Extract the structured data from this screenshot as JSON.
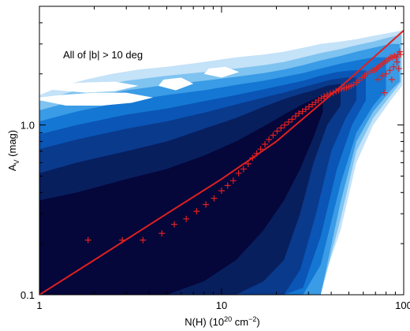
{
  "chart_data": {
    "type": "scatter",
    "title": "",
    "annotation": "All of |b| > 10 deg",
    "xlabel": {
      "base": "N(H) (10",
      "sup": "20",
      "mid": " cm",
      "sup2": "−2",
      "end": ")"
    },
    "ylabel": {
      "base": "A",
      "sub": "V",
      "end": " (mag)"
    },
    "x_scale": "log",
    "y_scale": "log",
    "xlim": [
      1,
      100
    ],
    "ylim": [
      0.1,
      5
    ],
    "x_ticks": [
      {
        "value": 1,
        "label": "1"
      },
      {
        "value": 10,
        "label": "10"
      },
      {
        "value": 100,
        "label": "100"
      }
    ],
    "y_ticks": [
      {
        "value": 0.1,
        "label": "0.1"
      },
      {
        "value": 1.0,
        "label": "1.0"
      }
    ],
    "density_levels": [
      "#05063a",
      "#081f5e",
      "#0a3a8c",
      "#0a55b5",
      "#1477d4",
      "#3a9be6",
      "#7fc3f0",
      "#c4e2f8"
    ],
    "density_bands": [
      {
        "x": [
          1,
          1.6,
          3,
          5,
          8,
          12,
          17,
          22,
          27,
          32,
          36
        ],
        "top": [
          0.36,
          0.4,
          0.48,
          0.55,
          0.66,
          0.8,
          0.98,
          1.15,
          1.3,
          1.42,
          1.5
        ],
        "bottom": [
          0.1,
          0.1,
          0.1,
          0.1,
          0.12,
          0.16,
          0.24,
          0.36,
          0.55,
          0.85,
          1.2
        ]
      },
      {
        "x": [
          1,
          1.6,
          3,
          5,
          8,
          12,
          17,
          22,
          27,
          32,
          38,
          45
        ],
        "top": [
          0.52,
          0.6,
          0.7,
          0.8,
          0.95,
          1.1,
          1.28,
          1.42,
          1.52,
          1.6,
          1.7,
          1.75
        ],
        "bottom": [
          0.1,
          0.1,
          0.1,
          0.1,
          0.1,
          0.1,
          0.12,
          0.16,
          0.3,
          0.6,
          1.0,
          1.3
        ]
      },
      {
        "x": [
          1,
          1.6,
          3,
          5,
          8,
          12,
          17,
          22,
          27,
          33,
          40,
          48,
          55
        ],
        "top": [
          0.72,
          0.82,
          0.95,
          1.05,
          1.18,
          1.32,
          1.45,
          1.55,
          1.65,
          1.75,
          1.85,
          1.9,
          1.9
        ],
        "bottom": [
          0.1,
          0.1,
          0.1,
          0.1,
          0.1,
          0.1,
          0.1,
          0.1,
          0.14,
          0.3,
          0.7,
          1.1,
          1.4
        ]
      },
      {
        "x": [
          1,
          1.6,
          3,
          5,
          8,
          12,
          17,
          22,
          28,
          35,
          43,
          52,
          62
        ],
        "top": [
          0.88,
          1.0,
          1.15,
          1.25,
          1.38,
          1.5,
          1.62,
          1.72,
          1.82,
          1.95,
          2.05,
          2.1,
          2.1
        ],
        "bottom": [
          0.1,
          0.1,
          0.1,
          0.1,
          0.1,
          0.1,
          0.1,
          0.1,
          0.11,
          0.22,
          0.55,
          1.0,
          1.4
        ]
      },
      {
        "x": [
          1,
          1.6,
          3,
          5,
          8,
          12,
          17,
          22,
          28,
          35,
          45,
          55,
          68,
          80
        ],
        "top": [
          1.05,
          1.2,
          1.38,
          1.5,
          1.6,
          1.72,
          1.82,
          1.92,
          2.02,
          2.15,
          2.3,
          2.4,
          2.5,
          2.5
        ],
        "bottom": [
          0.1,
          0.1,
          0.1,
          0.1,
          0.1,
          0.1,
          0.1,
          0.1,
          0.1,
          0.15,
          0.45,
          0.9,
          1.3,
          1.6
        ]
      },
      {
        "x": [
          1,
          1.6,
          3,
          5,
          8,
          12,
          17,
          22,
          28,
          35,
          45,
          55,
          68,
          85,
          95
        ],
        "top": [
          1.22,
          1.4,
          1.6,
          1.72,
          1.82,
          1.92,
          2.02,
          2.12,
          2.25,
          2.4,
          2.55,
          2.7,
          2.85,
          3.0,
          3.0
        ],
        "bottom": [
          0.1,
          0.1,
          0.1,
          0.1,
          0.1,
          0.1,
          0.1,
          0.1,
          0.1,
          0.1,
          0.35,
          0.8,
          1.2,
          1.6,
          1.8
        ]
      },
      {
        "x": [
          1,
          1.6,
          3,
          5,
          8,
          12,
          17,
          22,
          28,
          35,
          45,
          55,
          68,
          85,
          97
        ],
        "top": [
          1.38,
          1.6,
          1.82,
          1.95,
          2.05,
          2.15,
          2.25,
          2.35,
          2.5,
          2.65,
          2.8,
          2.95,
          3.1,
          3.3,
          3.4
        ],
        "bottom": [
          0.1,
          0.1,
          0.1,
          0.1,
          0.1,
          0.1,
          0.1,
          0.1,
          0.1,
          0.1,
          0.28,
          0.7,
          1.1,
          1.5,
          1.8
        ]
      },
      {
        "x": [
          1,
          1.3,
          1.8,
          2.5,
          3.5,
          5,
          8,
          12,
          17,
          22,
          28,
          35,
          45,
          55,
          68,
          85,
          98
        ],
        "top": [
          1.5,
          1.68,
          1.85,
          2.0,
          2.12,
          2.2,
          2.35,
          2.5,
          2.6,
          2.7,
          2.85,
          3.0,
          3.1,
          3.2,
          3.35,
          3.5,
          3.6
        ],
        "bottom": [
          0.1,
          0.1,
          0.1,
          0.1,
          0.1,
          0.1,
          0.1,
          0.1,
          0.1,
          0.1,
          0.1,
          0.11,
          0.24,
          0.6,
          1.0,
          1.4,
          1.7
        ]
      }
    ],
    "white_patches": [
      {
        "x": [
          1.0,
          1.4,
          2.2,
          3.2,
          4.2,
          3.0,
          2.0,
          1.3,
          1.0
        ],
        "y": [
          1.4,
          1.3,
          1.3,
          1.35,
          1.45,
          1.55,
          1.55,
          1.5,
          1.45
        ]
      },
      {
        "x": [
          1.1,
          1.8,
          2.6,
          3.5,
          2.6,
          1.8,
          1.1
        ],
        "y": [
          1.62,
          1.55,
          1.58,
          1.7,
          1.8,
          1.78,
          1.72
        ]
      },
      {
        "x": [
          4.5,
          5.6,
          7.0,
          6.0,
          4.8
        ],
        "y": [
          1.7,
          1.6,
          1.75,
          1.9,
          1.85
        ]
      },
      {
        "x": [
          8.0,
          10.0,
          12.5,
          10.5,
          8.5
        ],
        "y": [
          2.0,
          1.9,
          2.05,
          2.2,
          2.15
        ]
      }
    ],
    "series": [
      {
        "style": "plus-markers",
        "color": "#e02020",
        "x": [
          1.85,
          2.85,
          3.7,
          4.7,
          5.5,
          6.4,
          7.3,
          8.2,
          9.1,
          10.0,
          10.8,
          11.6,
          12.4,
          13.2,
          14.0,
          14.8,
          15.6,
          16.4,
          17.3,
          18.2,
          19.2,
          20.2,
          21.2,
          22.2,
          23.3,
          24.4,
          25.5,
          26.6,
          27.8,
          29.0,
          30.2,
          31.5,
          32.8,
          34.0,
          35.3,
          36.6,
          38.0,
          39.5,
          41.0,
          42.5,
          44.0,
          45.5,
          47.0,
          48.5,
          50.0,
          51.5,
          53.0,
          55.0,
          57.0,
          59.0,
          61.0,
          63.0,
          65.0,
          67.0,
          69.0,
          71.0,
          73.0,
          75.0,
          77.0,
          79.0,
          81.0,
          83.0,
          85.0,
          87.0,
          89.0,
          91.0,
          93.0,
          95.0,
          72.0,
          76.0,
          80.0,
          84.0,
          88.0,
          92.0,
          96.0,
          78.0,
          86.0,
          94.0
        ],
        "y": [
          0.21,
          0.21,
          0.21,
          0.23,
          0.26,
          0.28,
          0.31,
          0.34,
          0.37,
          0.41,
          0.44,
          0.47,
          0.52,
          0.55,
          0.59,
          0.64,
          0.68,
          0.72,
          0.77,
          0.82,
          0.87,
          0.92,
          0.96,
          1.0,
          1.04,
          1.08,
          1.13,
          1.17,
          1.2,
          1.24,
          1.28,
          1.32,
          1.36,
          1.4,
          1.44,
          1.47,
          1.5,
          1.53,
          1.55,
          1.58,
          1.6,
          1.63,
          1.65,
          1.66,
          1.68,
          1.7,
          1.73,
          1.78,
          1.83,
          1.9,
          1.95,
          2.0,
          2.05,
          2.1,
          2.1,
          2.15,
          2.2,
          2.25,
          2.3,
          2.35,
          2.4,
          2.45,
          2.5,
          2.5,
          2.55,
          2.5,
          2.6,
          2.7,
          1.85,
          1.95,
          2.0,
          2.1,
          2.2,
          2.35,
          2.6,
          1.55,
          1.85,
          2.15
        ]
      },
      {
        "style": "line",
        "color": "#e02020",
        "x": [
          1,
          2,
          5,
          10,
          20,
          50,
          100
        ],
        "y": [
          0.1,
          0.16,
          0.3,
          0.48,
          0.8,
          1.85,
          3.6
        ]
      }
    ]
  }
}
